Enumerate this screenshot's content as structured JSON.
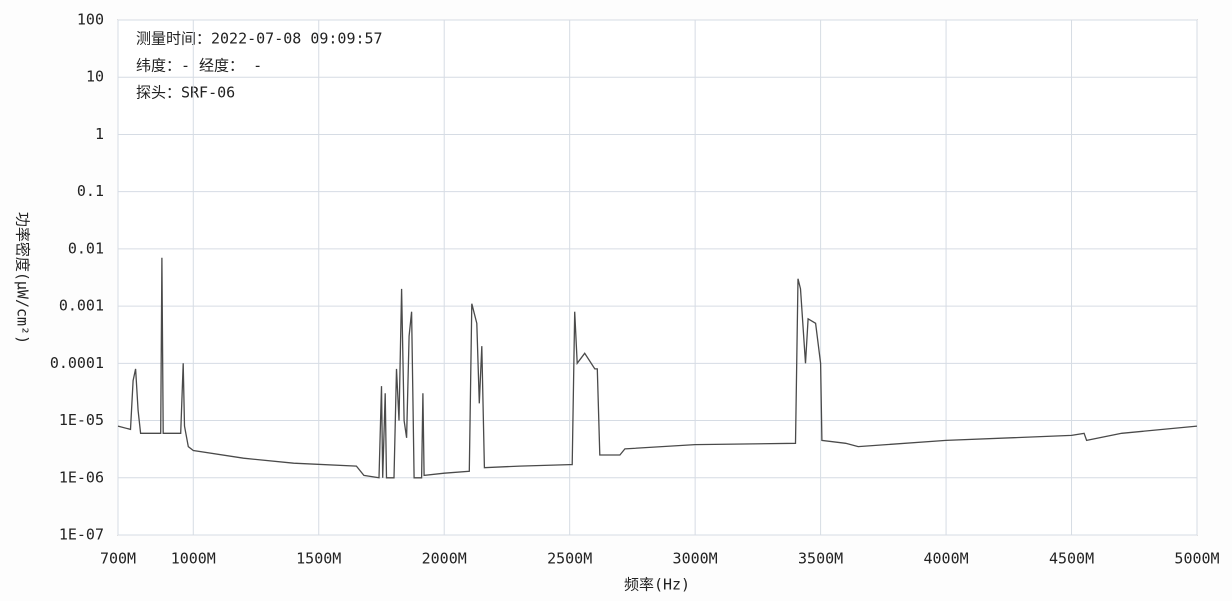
{
  "chart_data": {
    "type": "line",
    "annotations": [
      "测量时间：2022-07-08 09:09:57",
      "纬度：- 经度： -",
      "探头：SRF-06"
    ],
    "x_label": "频率(Hz)",
    "y_label": "功率密度(μW/cm²)",
    "log_y": true,
    "grid": true,
    "xlim": [
      700,
      5000
    ],
    "xticks": [
      {
        "value": 700,
        "label": "700M"
      },
      {
        "value": 1000,
        "label": "1000M"
      },
      {
        "value": 1500,
        "label": "1500M"
      },
      {
        "value": 2000,
        "label": "2000M"
      },
      {
        "value": 2500,
        "label": "2500M"
      },
      {
        "value": 3000,
        "label": "3000M"
      },
      {
        "value": 3500,
        "label": "3500M"
      },
      {
        "value": 4000,
        "label": "4000M"
      },
      {
        "value": 4500,
        "label": "4500M"
      },
      {
        "value": 5000,
        "label": "5000M"
      }
    ],
    "ylim": [
      1e-07,
      100
    ],
    "yticks": [
      100,
      10,
      1,
      0.1,
      0.01,
      0.001,
      0.0001,
      {
        "value": 1e-05,
        "label": "1E-05"
      },
      {
        "value": 1e-06,
        "label": "1E-06"
      },
      {
        "value": 1e-07,
        "label": "1E-07"
      }
    ],
    "x": [
      700,
      750,
      760,
      770,
      780,
      790,
      870,
      875,
      880,
      950,
      960,
      965,
      980,
      1000,
      1200,
      1400,
      1650,
      1680,
      1740,
      1750,
      1755,
      1765,
      1770,
      1800,
      1810,
      1820,
      1830,
      1840,
      1850,
      1860,
      1870,
      1880,
      1910,
      1915,
      1920,
      2000,
      2100,
      2110,
      2130,
      2140,
      2150,
      2160,
      2300,
      2500,
      2510,
      2520,
      2530,
      2560,
      2600,
      2610,
      2620,
      2700,
      2720,
      3000,
      3400,
      3410,
      3420,
      3440,
      3450,
      3480,
      3500,
      3505,
      3600,
      3650,
      4000,
      4500,
      4550,
      4560,
      4700,
      5000
    ],
    "series": [
      {
        "name": "功率密度",
        "color": "#4a4a4a",
        "values": [
          8e-06,
          7e-06,
          5e-05,
          8e-05,
          1.5e-05,
          6e-06,
          6e-06,
          0.007,
          6e-06,
          6e-06,
          0.0001,
          8e-06,
          3.5e-06,
          3e-06,
          2.2e-06,
          1.8e-06,
          1.6e-06,
          1.1e-06,
          1e-06,
          4e-05,
          1e-06,
          3e-05,
          1e-06,
          1e-06,
          8e-05,
          1e-05,
          0.002,
          1e-05,
          5e-06,
          0.0003,
          0.0008,
          1e-06,
          1e-06,
          3e-05,
          1.1e-06,
          1.2e-06,
          1.3e-06,
          0.0011,
          0.0005,
          2e-05,
          0.0002,
          1.5e-06,
          1.6e-06,
          1.7e-06,
          1.7e-06,
          0.0008,
          0.0001,
          0.00015,
          8e-05,
          8e-05,
          2.5e-06,
          2.5e-06,
          3.2e-06,
          3.8e-06,
          4e-06,
          0.003,
          0.002,
          0.0001,
          0.0006,
          0.0005,
          0.0001,
          4.5e-06,
          4e-06,
          3.5e-06,
          4.5e-06,
          5.5e-06,
          6e-06,
          4.5e-06,
          6e-06,
          8e-06
        ]
      }
    ]
  }
}
